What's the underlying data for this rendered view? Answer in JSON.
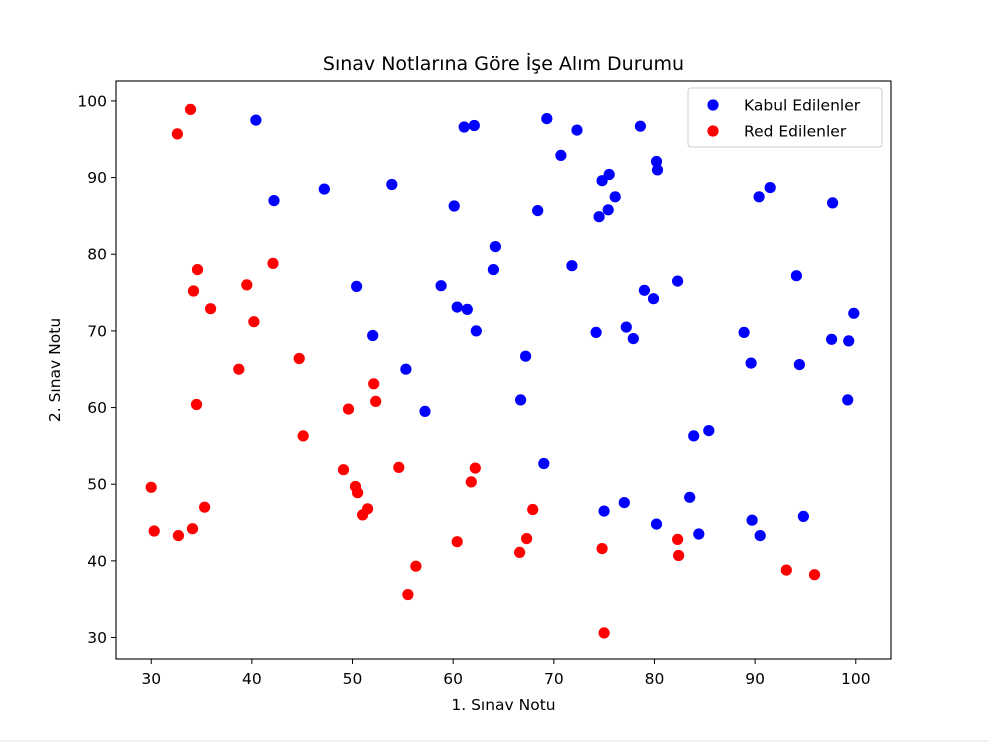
{
  "chart_data": {
    "type": "scatter",
    "title": "Sınav Notlarına Göre İşe Alım Durumu",
    "xlabel": "1. Sınav Notu",
    "ylabel": "2. Sınav Notu",
    "xlim": [
      26.5,
      103.5
    ],
    "ylim": [
      27.2,
      102.6
    ],
    "xticks": [
      30,
      40,
      50,
      60,
      70,
      80,
      90,
      100
    ],
    "yticks": [
      30,
      40,
      50,
      60,
      70,
      80,
      90,
      100
    ],
    "grid": false,
    "legend_position": "top-right",
    "series": [
      {
        "name": "Kabul Edilenler",
        "color": "#0000ff",
        "points": [
          [
            40.4,
            97.5
          ],
          [
            42.2,
            87.0
          ],
          [
            47.2,
            88.5
          ],
          [
            50.4,
            75.8
          ],
          [
            52.0,
            69.4
          ],
          [
            53.9,
            89.1
          ],
          [
            55.3,
            65.0
          ],
          [
            57.2,
            59.5
          ],
          [
            58.8,
            75.9
          ],
          [
            60.1,
            86.3
          ],
          [
            60.4,
            73.1
          ],
          [
            61.1,
            96.6
          ],
          [
            61.4,
            72.8
          ],
          [
            62.1,
            96.8
          ],
          [
            62.3,
            70.0
          ],
          [
            64.0,
            78.0
          ],
          [
            64.2,
            81.0
          ],
          [
            66.7,
            61.0
          ],
          [
            67.2,
            66.7
          ],
          [
            68.4,
            85.7
          ],
          [
            69.0,
            52.7
          ],
          [
            69.3,
            97.7
          ],
          [
            70.7,
            92.9
          ],
          [
            71.8,
            78.5
          ],
          [
            72.3,
            96.2
          ],
          [
            74.2,
            69.8
          ],
          [
            74.5,
            84.9
          ],
          [
            74.8,
            89.6
          ],
          [
            75.0,
            46.5
          ],
          [
            75.4,
            85.8
          ],
          [
            75.5,
            90.4
          ],
          [
            76.1,
            87.5
          ],
          [
            77.0,
            47.6
          ],
          [
            77.2,
            70.5
          ],
          [
            77.9,
            69.0
          ],
          [
            78.6,
            96.7
          ],
          [
            79.0,
            75.3
          ],
          [
            79.9,
            74.2
          ],
          [
            80.2,
            44.8
          ],
          [
            80.2,
            92.1
          ],
          [
            80.3,
            91.0
          ],
          [
            82.3,
            76.5
          ],
          [
            83.5,
            48.3
          ],
          [
            83.9,
            56.3
          ],
          [
            84.4,
            43.5
          ],
          [
            85.4,
            57.0
          ],
          [
            88.9,
            69.8
          ],
          [
            89.6,
            65.8
          ],
          [
            89.7,
            45.3
          ],
          [
            90.4,
            87.5
          ],
          [
            90.5,
            43.3
          ],
          [
            91.5,
            88.7
          ],
          [
            94.1,
            77.2
          ],
          [
            94.4,
            65.6
          ],
          [
            94.8,
            45.8
          ],
          [
            97.6,
            68.9
          ],
          [
            97.7,
            86.7
          ],
          [
            99.2,
            61.0
          ],
          [
            99.3,
            68.7
          ],
          [
            99.8,
            72.3
          ]
        ]
      },
      {
        "name": "Red Edilenler",
        "color": "#ff0000",
        "points": [
          [
            30.0,
            49.6
          ],
          [
            30.3,
            43.9
          ],
          [
            32.6,
            95.7
          ],
          [
            32.7,
            43.3
          ],
          [
            33.9,
            98.9
          ],
          [
            34.1,
            44.2
          ],
          [
            34.2,
            75.2
          ],
          [
            34.5,
            60.4
          ],
          [
            34.6,
            78.0
          ],
          [
            35.3,
            47.0
          ],
          [
            35.9,
            72.9
          ],
          [
            38.7,
            65.0
          ],
          [
            39.5,
            76.0
          ],
          [
            40.2,
            71.2
          ],
          [
            42.1,
            78.8
          ],
          [
            44.7,
            66.4
          ],
          [
            45.1,
            56.3
          ],
          [
            49.1,
            51.9
          ],
          [
            49.6,
            59.8
          ],
          [
            50.3,
            49.7
          ],
          [
            50.5,
            48.9
          ],
          [
            51.0,
            46.0
          ],
          [
            51.5,
            46.8
          ],
          [
            52.1,
            63.1
          ],
          [
            52.3,
            60.8
          ],
          [
            54.6,
            52.2
          ],
          [
            55.5,
            35.6
          ],
          [
            56.3,
            39.3
          ],
          [
            60.4,
            42.5
          ],
          [
            61.8,
            50.3
          ],
          [
            62.2,
            52.1
          ],
          [
            66.6,
            41.1
          ],
          [
            67.3,
            42.9
          ],
          [
            67.9,
            46.7
          ],
          [
            74.8,
            41.6
          ],
          [
            75.0,
            30.6
          ],
          [
            82.3,
            42.8
          ],
          [
            82.4,
            40.7
          ],
          [
            93.1,
            38.8
          ],
          [
            95.9,
            38.2
          ]
        ]
      }
    ]
  }
}
